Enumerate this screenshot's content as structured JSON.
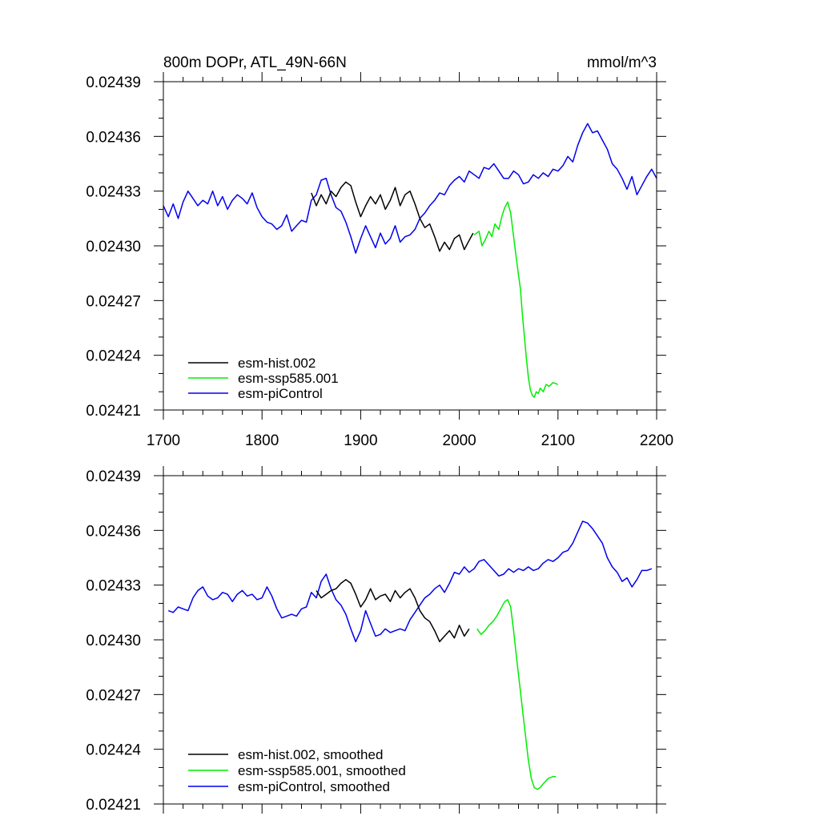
{
  "chart_data": [
    {
      "type": "line",
      "title_left": "800m DOPr, ATL_49N-66N",
      "title_right": "mmol/m^3",
      "xlim": [
        1700,
        2200
      ],
      "ylim": [
        0.02421,
        0.02439
      ],
      "xticks": [
        1700,
        1800,
        1900,
        2000,
        2100,
        2200
      ],
      "xtick_labels": [
        "1700",
        "1800",
        "1900",
        "2000",
        "2100",
        "2200"
      ],
      "yticks": [
        0.02421,
        0.02424,
        0.02427,
        0.0243,
        0.02433,
        0.02436,
        0.02439
      ],
      "ytick_labels": [
        "0.02421",
        "0.02424",
        "0.02427",
        "0.02430",
        "0.02433",
        "0.02436",
        "0.02439"
      ],
      "legend_position": "bottom-left",
      "series": [
        {
          "name": "esm-hist.002",
          "color": "#000000",
          "x": [
            1850,
            1855,
            1860,
            1865,
            1870,
            1875,
            1880,
            1885,
            1890,
            1895,
            1900,
            1905,
            1910,
            1915,
            1920,
            1925,
            1930,
            1935,
            1940,
            1945,
            1950,
            1955,
            1960,
            1965,
            1970,
            1975,
            1980,
            1985,
            1990,
            1995,
            2000,
            2005,
            2010,
            2014
          ],
          "y": [
            0.024329,
            0.024322,
            0.024328,
            0.024323,
            0.02433,
            0.024327,
            0.024332,
            0.024335,
            0.024333,
            0.024324,
            0.024316,
            0.024322,
            0.024327,
            0.024323,
            0.024328,
            0.02432,
            0.024325,
            0.024332,
            0.024322,
            0.024328,
            0.02433,
            0.024323,
            0.024315,
            0.02431,
            0.024312,
            0.024305,
            0.024297,
            0.024302,
            0.024298,
            0.024304,
            0.024306,
            0.024298,
            0.024303,
            0.024307
          ]
        },
        {
          "name": "esm-ssp585.001",
          "color": "#00ee00",
          "x": [
            2015,
            2020,
            2023,
            2026,
            2030,
            2033,
            2036,
            2040,
            2043,
            2046,
            2049,
            2052,
            2055,
            2058,
            2060,
            2062,
            2064,
            2066,
            2068,
            2070,
            2072,
            2074,
            2076,
            2078,
            2080,
            2082,
            2085,
            2088,
            2091,
            2095,
            2100
          ],
          "y": [
            0.024306,
            0.024308,
            0.0243,
            0.024303,
            0.024308,
            0.024305,
            0.024312,
            0.024309,
            0.024316,
            0.024321,
            0.024324,
            0.024318,
            0.024305,
            0.024292,
            0.024284,
            0.024276,
            0.024262,
            0.02425,
            0.024238,
            0.024228,
            0.024221,
            0.024218,
            0.024217,
            0.02422,
            0.024219,
            0.024222,
            0.02422,
            0.024224,
            0.024223,
            0.024225,
            0.024224
          ]
        },
        {
          "name": "esm-piControl",
          "color": "#0000ee",
          "x": [
            1700,
            1705,
            1710,
            1715,
            1720,
            1725,
            1730,
            1735,
            1740,
            1745,
            1750,
            1755,
            1760,
            1765,
            1770,
            1775,
            1780,
            1785,
            1790,
            1795,
            1800,
            1805,
            1810,
            1815,
            1820,
            1825,
            1830,
            1835,
            1840,
            1845,
            1850,
            1855,
            1860,
            1865,
            1870,
            1875,
            1880,
            1885,
            1890,
            1895,
            1900,
            1905,
            1910,
            1915,
            1920,
            1925,
            1930,
            1935,
            1940,
            1945,
            1950,
            1955,
            1960,
            1965,
            1970,
            1975,
            1980,
            1985,
            1990,
            1995,
            2000,
            2005,
            2010,
            2015,
            2020,
            2025,
            2030,
            2035,
            2040,
            2045,
            2050,
            2055,
            2060,
            2065,
            2070,
            2075,
            2080,
            2085,
            2090,
            2095,
            2100,
            2105,
            2110,
            2115,
            2120,
            2125,
            2130,
            2135,
            2140,
            2145,
            2150,
            2155,
            2160,
            2165,
            2170,
            2175,
            2180,
            2185,
            2190,
            2195,
            2200
          ],
          "y": [
            0.024322,
            0.024316,
            0.024323,
            0.024315,
            0.024324,
            0.02433,
            0.024326,
            0.024322,
            0.024325,
            0.024323,
            0.02433,
            0.024322,
            0.024327,
            0.02432,
            0.024325,
            0.024328,
            0.024326,
            0.024323,
            0.024329,
            0.024321,
            0.024316,
            0.024313,
            0.024312,
            0.024309,
            0.024311,
            0.024317,
            0.024308,
            0.024311,
            0.024314,
            0.024313,
            0.024325,
            0.024328,
            0.024336,
            0.024337,
            0.024328,
            0.024321,
            0.024319,
            0.024313,
            0.024305,
            0.024296,
            0.024304,
            0.024311,
            0.024305,
            0.024299,
            0.024307,
            0.024301,
            0.024304,
            0.024311,
            0.024302,
            0.024305,
            0.024306,
            0.024309,
            0.024315,
            0.024318,
            0.024322,
            0.024325,
            0.024329,
            0.024328,
            0.024333,
            0.024336,
            0.024338,
            0.024335,
            0.024341,
            0.024339,
            0.024337,
            0.024343,
            0.024342,
            0.024345,
            0.024341,
            0.024337,
            0.024337,
            0.024341,
            0.024339,
            0.024334,
            0.024335,
            0.024339,
            0.024337,
            0.02434,
            0.024338,
            0.024342,
            0.024341,
            0.024344,
            0.024349,
            0.024346,
            0.024355,
            0.024362,
            0.024367,
            0.024362,
            0.024363,
            0.024358,
            0.024353,
            0.024345,
            0.024342,
            0.024337,
            0.024331,
            0.024338,
            0.024328,
            0.024333,
            0.024338,
            0.024342,
            0.024337
          ]
        }
      ]
    },
    {
      "type": "line",
      "xlim": [
        1700,
        2200
      ],
      "ylim": [
        0.02421,
        0.02439
      ],
      "xticks": [
        1700,
        1800,
        1900,
        2000,
        2100,
        2200
      ],
      "yticks": [
        0.02421,
        0.02424,
        0.02427,
        0.0243,
        0.02433,
        0.02436,
        0.02439
      ],
      "ytick_labels": [
        "0.02421",
        "0.02424",
        "0.02427",
        "0.02430",
        "0.02433",
        "0.02436",
        "0.02439"
      ],
      "legend_position": "bottom-left",
      "series": [
        {
          "name": "esm-hist.002, smoothed",
          "color": "#000000",
          "x": [
            1855,
            1860,
            1865,
            1870,
            1875,
            1880,
            1885,
            1890,
            1895,
            1900,
            1905,
            1910,
            1915,
            1920,
            1925,
            1930,
            1935,
            1940,
            1945,
            1950,
            1955,
            1960,
            1965,
            1970,
            1975,
            1980,
            1985,
            1990,
            1995,
            2000,
            2005,
            2010
          ],
          "y": [
            0.024327,
            0.024323,
            0.024325,
            0.024327,
            0.024328,
            0.024331,
            0.024333,
            0.024331,
            0.024325,
            0.024318,
            0.024322,
            0.024328,
            0.024322,
            0.024324,
            0.024325,
            0.024321,
            0.024327,
            0.024323,
            0.024326,
            0.024328,
            0.024323,
            0.024316,
            0.024312,
            0.02431,
            0.024305,
            0.024299,
            0.024302,
            0.024305,
            0.024301,
            0.024308,
            0.024302,
            0.024306
          ]
        },
        {
          "name": "esm-ssp585.001, smoothed",
          "color": "#00ee00",
          "x": [
            2018,
            2022,
            2026,
            2030,
            2034,
            2038,
            2042,
            2046,
            2049,
            2052,
            2055,
            2058,
            2061,
            2064,
            2067,
            2070,
            2073,
            2076,
            2079,
            2082,
            2085,
            2090,
            2095,
            2098
          ],
          "y": [
            0.024306,
            0.024303,
            0.024305,
            0.024308,
            0.02431,
            0.024313,
            0.024317,
            0.024321,
            0.024322,
            0.024318,
            0.024305,
            0.02429,
            0.024276,
            0.024262,
            0.024248,
            0.024234,
            0.024224,
            0.024219,
            0.024218,
            0.024219,
            0.024221,
            0.024224,
            0.024225,
            0.024225
          ]
        },
        {
          "name": "esm-piControl, smoothed",
          "color": "#0000ee",
          "x": [
            1705,
            1710,
            1715,
            1720,
            1725,
            1730,
            1735,
            1740,
            1745,
            1750,
            1755,
            1760,
            1765,
            1770,
            1775,
            1780,
            1785,
            1790,
            1795,
            1800,
            1805,
            1810,
            1815,
            1820,
            1825,
            1830,
            1835,
            1840,
            1845,
            1850,
            1855,
            1860,
            1865,
            1870,
            1875,
            1880,
            1885,
            1890,
            1895,
            1900,
            1905,
            1910,
            1915,
            1920,
            1925,
            1930,
            1935,
            1940,
            1945,
            1950,
            1955,
            1960,
            1965,
            1970,
            1975,
            1980,
            1985,
            1990,
            1995,
            2000,
            2005,
            2010,
            2015,
            2020,
            2025,
            2030,
            2035,
            2040,
            2045,
            2050,
            2055,
            2060,
            2065,
            2070,
            2075,
            2080,
            2085,
            2090,
            2095,
            2100,
            2105,
            2110,
            2115,
            2120,
            2125,
            2130,
            2135,
            2140,
            2145,
            2150,
            2155,
            2160,
            2165,
            2170,
            2175,
            2180,
            2185,
            2190,
            2195
          ],
          "y": [
            0.024316,
            0.024315,
            0.024318,
            0.024317,
            0.024316,
            0.024323,
            0.024327,
            0.024329,
            0.024324,
            0.024322,
            0.024323,
            0.024326,
            0.024325,
            0.024321,
            0.024325,
            0.024327,
            0.024324,
            0.024325,
            0.024322,
            0.024323,
            0.024329,
            0.024324,
            0.024317,
            0.024312,
            0.024313,
            0.024314,
            0.024313,
            0.024317,
            0.024318,
            0.024326,
            0.024323,
            0.024332,
            0.024336,
            0.024328,
            0.024322,
            0.024319,
            0.024314,
            0.024306,
            0.024299,
            0.024305,
            0.024316,
            0.024309,
            0.024302,
            0.024303,
            0.024306,
            0.024304,
            0.024305,
            0.024306,
            0.024305,
            0.024311,
            0.024315,
            0.024319,
            0.024323,
            0.024325,
            0.024328,
            0.02433,
            0.024326,
            0.024331,
            0.024337,
            0.024336,
            0.02434,
            0.024337,
            0.024339,
            0.024343,
            0.024344,
            0.024341,
            0.024338,
            0.024335,
            0.024336,
            0.024339,
            0.024337,
            0.024339,
            0.024338,
            0.02434,
            0.024338,
            0.024339,
            0.024342,
            0.024344,
            0.024343,
            0.024345,
            0.024348,
            0.024349,
            0.024353,
            0.024359,
            0.024365,
            0.024364,
            0.024361,
            0.024357,
            0.024353,
            0.024345,
            0.02434,
            0.024337,
            0.024332,
            0.024334,
            0.024329,
            0.024333,
            0.024338,
            0.024338,
            0.024339
          ]
        }
      ]
    }
  ]
}
